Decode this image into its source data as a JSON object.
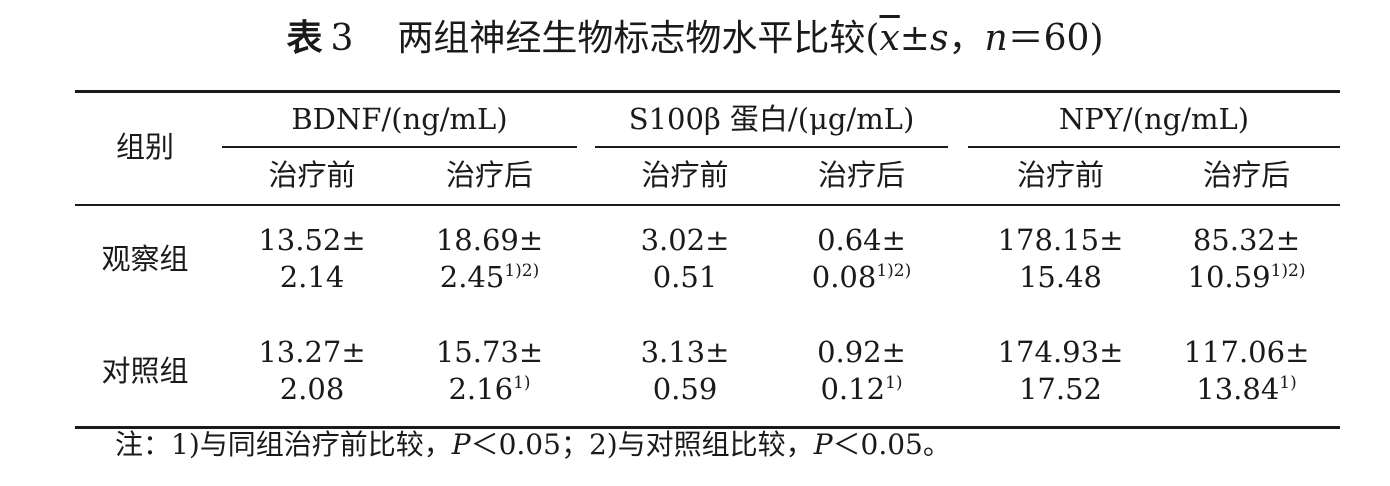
{
  "caption": {
    "label": "表",
    "number": "3",
    "title_text": "两组神经生物标志物水平比较(",
    "xbar": "x",
    "pm": "±",
    "s": "s",
    "comma": "，",
    "n": "n",
    "eq": "＝60)"
  },
  "headers": {
    "group": "组别",
    "markers": [
      "BDNF/(ng/mL)",
      "S100β 蛋白/(μg/mL)",
      "NPY/(ng/mL)"
    ],
    "sub": [
      "治疗前",
      "治疗后",
      "治疗前",
      "治疗后",
      "治疗前",
      "治疗后"
    ]
  },
  "rows": [
    {
      "group": "观察组",
      "cells": [
        {
          "l1": "13.52±",
          "l2": "2.14",
          "sup": ""
        },
        {
          "l1": "18.69±",
          "l2": "2.45",
          "sup": "1)2)"
        },
        {
          "l1": "3.02±",
          "l2": "0.51",
          "sup": ""
        },
        {
          "l1": "0.64±",
          "l2": "0.08",
          "sup": "1)2)"
        },
        {
          "l1": "178.15±",
          "l2": "15.48",
          "sup": ""
        },
        {
          "l1": "85.32±",
          "l2": "10.59",
          "sup": "1)2)"
        }
      ]
    },
    {
      "group": "对照组",
      "cells": [
        {
          "l1": "13.27±",
          "l2": "2.08",
          "sup": ""
        },
        {
          "l1": "15.73±",
          "l2": "2.16",
          "sup": "1)"
        },
        {
          "l1": "3.13±",
          "l2": "0.59",
          "sup": ""
        },
        {
          "l1": "0.92±",
          "l2": "0.12",
          "sup": "1)"
        },
        {
          "l1": "174.93±",
          "l2": "17.52",
          "sup": ""
        },
        {
          "l1": "117.06±",
          "l2": "13.84",
          "sup": "1)"
        }
      ]
    }
  ],
  "note": {
    "prefix": "注：1)与同组治疗前比较，",
    "p1": "P",
    "mid": "＜0.05；2)与对照组比较，",
    "p2": "P",
    "suffix": "＜0.05。"
  }
}
